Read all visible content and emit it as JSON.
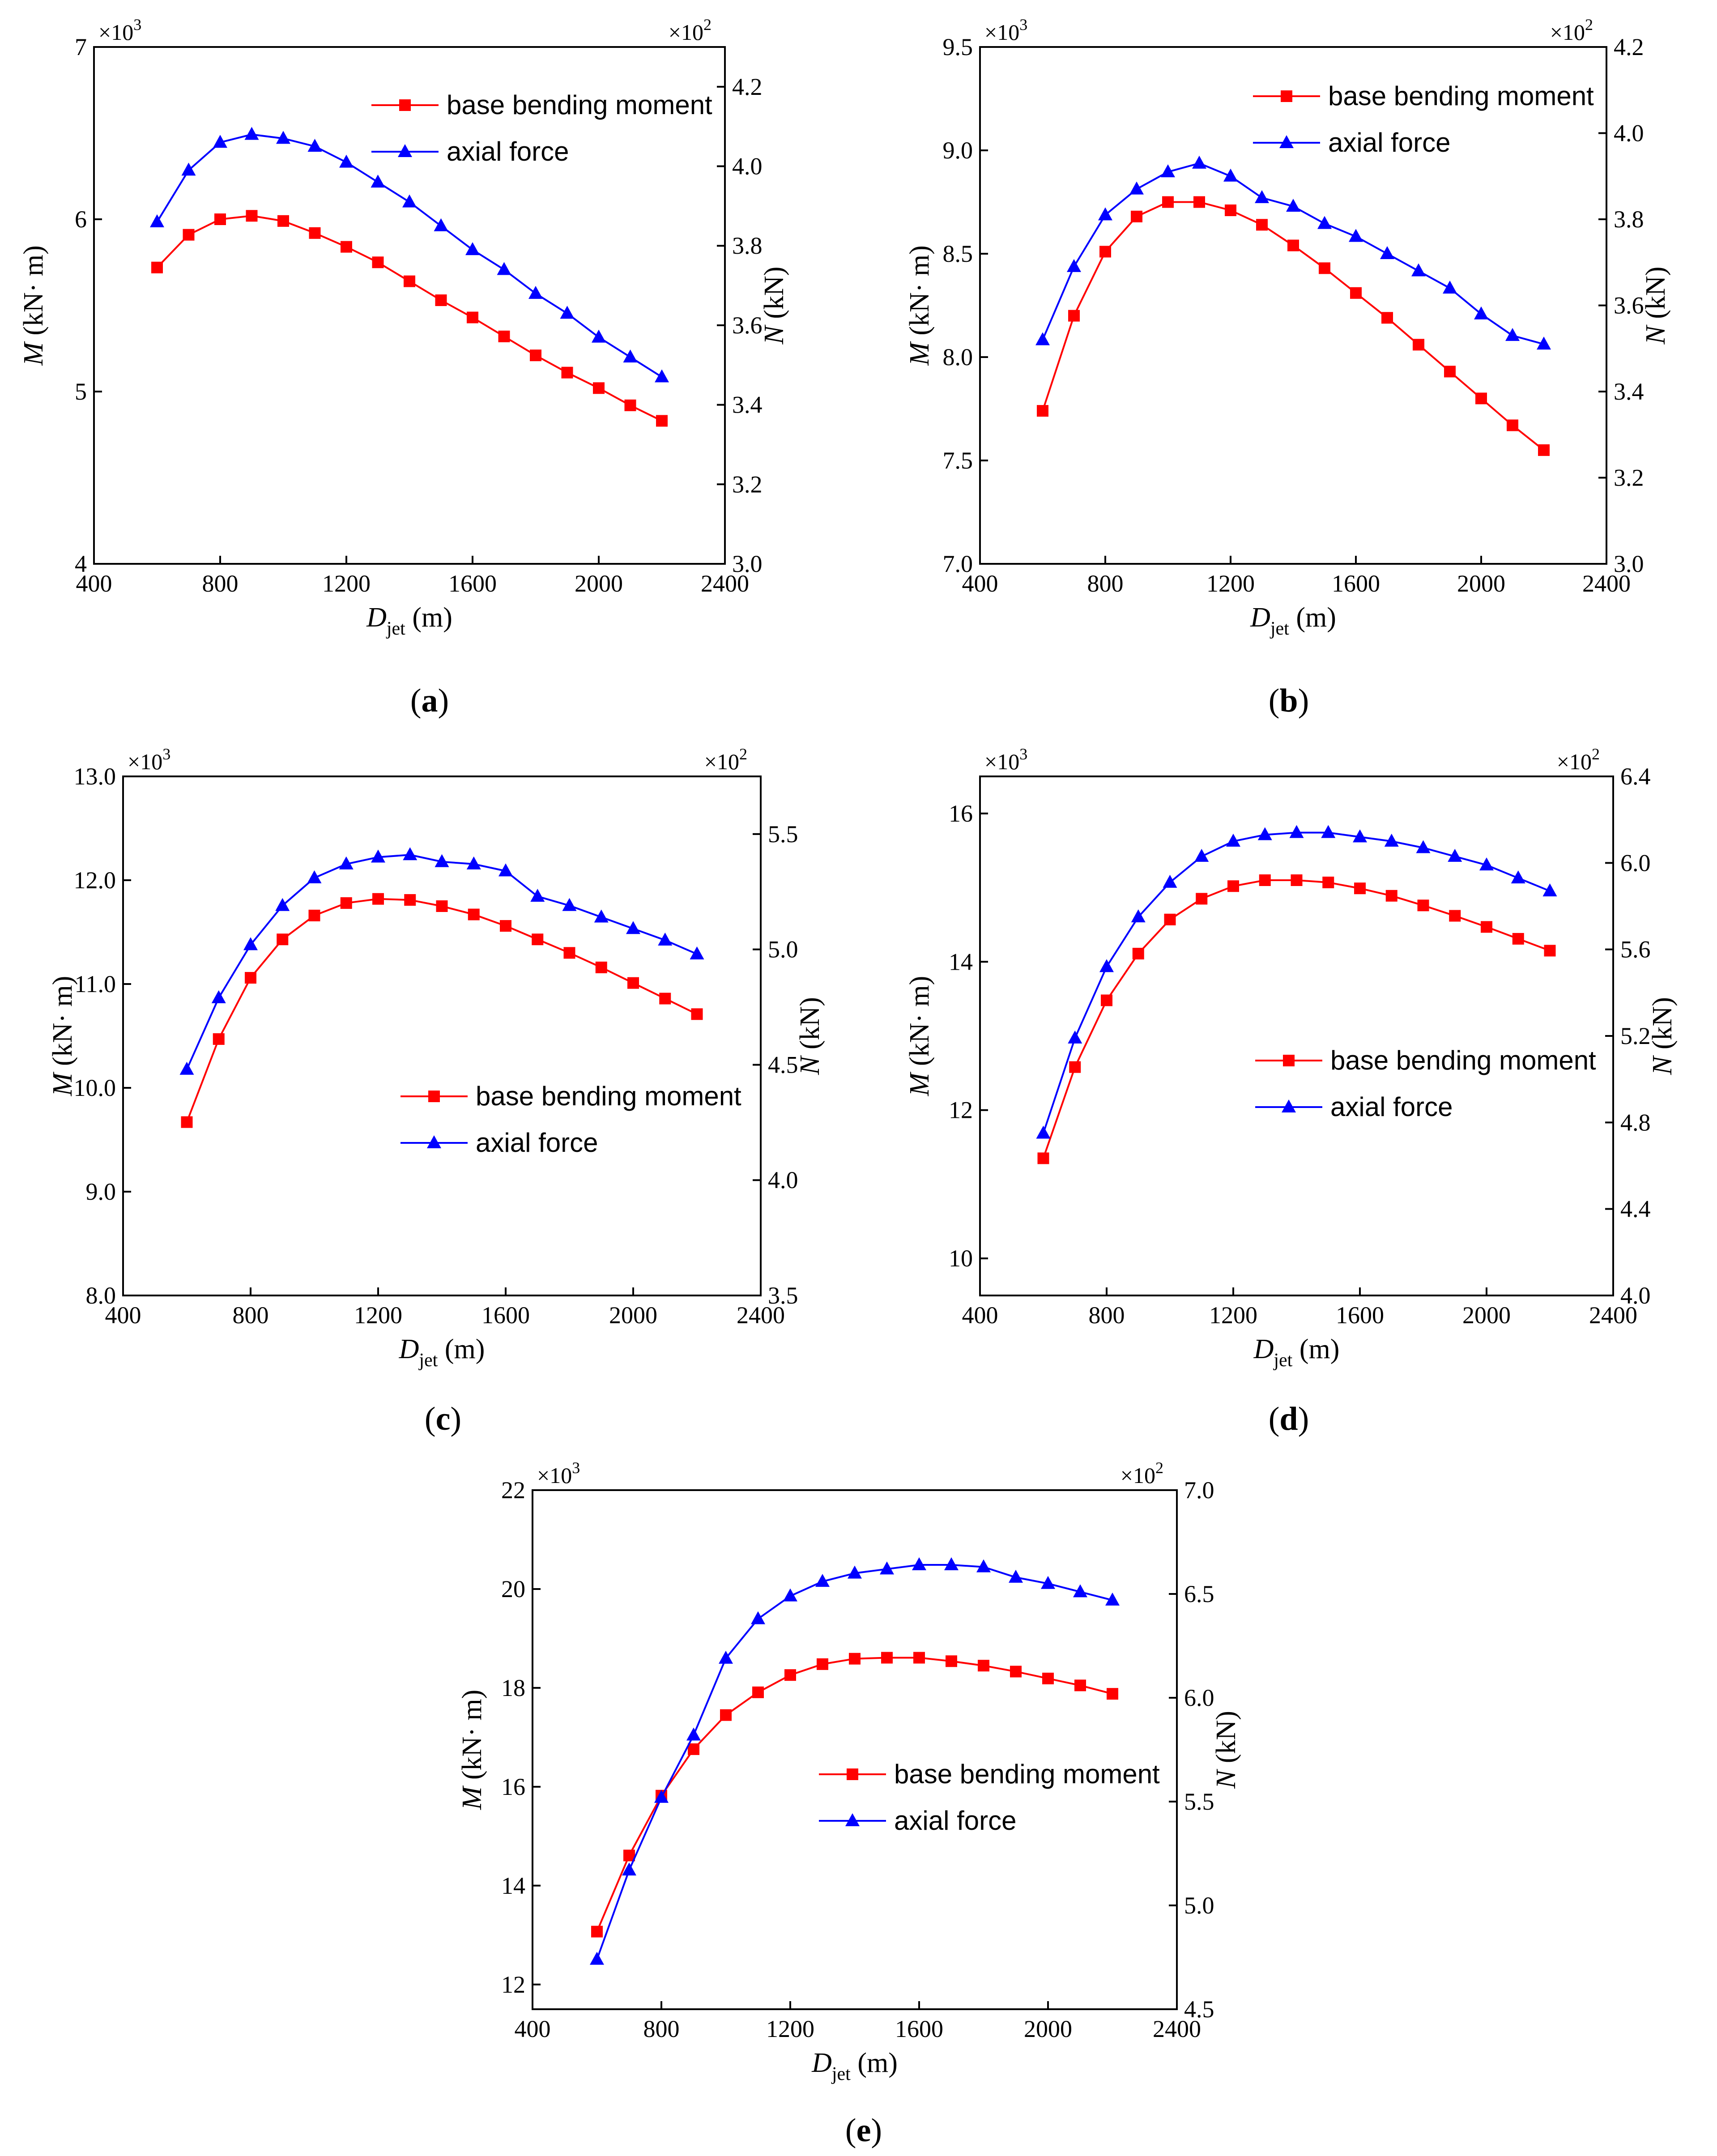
{
  "figure": {
    "colors": {
      "moment": "#ff0000",
      "axial": "#0000ff"
    },
    "common": {
      "xlabel_main": "D",
      "xlabel_sub": "jet",
      "xlabel_unit": " (m)",
      "ylabel_left_main": "M",
      "ylabel_left_unit": " (kN· m)",
      "ylabel_right_main": "N",
      "ylabel_right_unit": " (kN)",
      "left_multiplier": "×10",
      "left_multiplier_exp": "3",
      "right_multiplier": "×10",
      "right_multiplier_exp": "2",
      "legend_moment": "base bending moment",
      "legend_axial": "axial force"
    }
  },
  "chart_data": [
    {
      "type": "line",
      "label": "(a)",
      "x": [
        600,
        700,
        800,
        900,
        1000,
        1100,
        1200,
        1300,
        1400,
        1500,
        1600,
        1700,
        1800,
        1900,
        2000,
        2100,
        2200
      ],
      "xlim": [
        400,
        2400
      ],
      "xticks": [
        400,
        800,
        1200,
        1600,
        2000,
        2400
      ],
      "xtick_labels": [
        "400",
        "800",
        "1200",
        "1600",
        "2000",
        "2400"
      ],
      "ylim_left": [
        4,
        7
      ],
      "yticks_left": [
        4,
        5,
        6,
        7
      ],
      "ytick_labels_left": [
        "4",
        "5",
        "6",
        "7"
      ],
      "ylim_right": [
        3.0,
        4.3
      ],
      "yticks_right": [
        3.0,
        3.2,
        3.4,
        3.6,
        3.8,
        4.0,
        4.2
      ],
      "ytick_labels_right": [
        "3.0",
        "3.2",
        "3.4",
        "3.6",
        "3.8",
        "4.0",
        "4.2"
      ],
      "legend_position": "top-right",
      "series": [
        {
          "name": "base bending moment",
          "axis": "left",
          "marker": "square",
          "values": [
            5.72,
            5.91,
            6.0,
            6.02,
            5.99,
            5.92,
            5.84,
            5.75,
            5.64,
            5.53,
            5.43,
            5.32,
            5.21,
            5.11,
            5.02,
            4.92,
            4.83
          ]
        },
        {
          "name": "axial force",
          "axis": "right",
          "marker": "triangle",
          "values": [
            3.86,
            3.99,
            4.06,
            4.08,
            4.07,
            4.05,
            4.01,
            3.96,
            3.91,
            3.85,
            3.79,
            3.74,
            3.68,
            3.63,
            3.57,
            3.52,
            3.47
          ]
        }
      ]
    },
    {
      "type": "line",
      "label": "(b)",
      "x": [
        600,
        700,
        800,
        900,
        1000,
        1100,
        1200,
        1300,
        1400,
        1500,
        1600,
        1700,
        1800,
        1900,
        2000,
        2100,
        2200
      ],
      "xlim": [
        400,
        2400
      ],
      "xticks": [
        400,
        800,
        1200,
        1600,
        2000,
        2400
      ],
      "xtick_labels": [
        "400",
        "800",
        "1200",
        "1600",
        "2000",
        "2400"
      ],
      "ylim_left": [
        7.0,
        9.5
      ],
      "yticks_left": [
        7.0,
        7.5,
        8.0,
        8.5,
        9.0,
        9.5
      ],
      "ytick_labels_left": [
        "7.0",
        "7.5",
        "8.0",
        "8.5",
        "9.0",
        "9.5"
      ],
      "ylim_right": [
        3.0,
        4.2
      ],
      "yticks_right": [
        3.0,
        3.2,
        3.4,
        3.6,
        3.8,
        4.0,
        4.2
      ],
      "ytick_labels_right": [
        "3.0",
        "3.2",
        "3.4",
        "3.6",
        "3.8",
        "4.0",
        "4.2"
      ],
      "legend_position": "top-right",
      "series": [
        {
          "name": "base bending moment",
          "axis": "left",
          "marker": "square",
          "values": [
            7.74,
            8.2,
            8.51,
            8.68,
            8.75,
            8.75,
            8.71,
            8.64,
            8.54,
            8.43,
            8.31,
            8.19,
            8.06,
            7.93,
            7.8,
            7.67,
            7.55
          ]
        },
        {
          "name": "axial force",
          "axis": "right",
          "marker": "triangle",
          "values": [
            3.52,
            3.69,
            3.81,
            3.87,
            3.91,
            3.93,
            3.9,
            3.85,
            3.83,
            3.79,
            3.76,
            3.72,
            3.68,
            3.64,
            3.58,
            3.53,
            3.51
          ]
        }
      ]
    },
    {
      "type": "line",
      "label": "(c)",
      "x": [
        600,
        700,
        800,
        900,
        1000,
        1100,
        1200,
        1300,
        1400,
        1500,
        1600,
        1700,
        1800,
        1900,
        2000,
        2100,
        2200
      ],
      "xlim": [
        400,
        2400
      ],
      "xticks": [
        400,
        800,
        1200,
        1600,
        2000,
        2400
      ],
      "xtick_labels": [
        "400",
        "800",
        "1200",
        "1600",
        "2000",
        "2400"
      ],
      "ylim_left": [
        8.0,
        13.0
      ],
      "yticks_left": [
        8.0,
        9.0,
        10.0,
        11.0,
        12.0,
        13.0
      ],
      "ytick_labels_left": [
        "8.0",
        "9.0",
        "10.0",
        "11.0",
        "12.0",
        "13.0"
      ],
      "ylim_right": [
        3.5,
        5.75
      ],
      "yticks_right": [
        3.5,
        4.0,
        4.5,
        5.0,
        5.5
      ],
      "ytick_labels_right": [
        "3.5",
        "4.0",
        "4.5",
        "5.0",
        "5.5"
      ],
      "legend_position": "center-right",
      "series": [
        {
          "name": "base bending moment",
          "axis": "left",
          "marker": "square",
          "values": [
            9.67,
            10.47,
            11.06,
            11.43,
            11.66,
            11.78,
            11.82,
            11.81,
            11.75,
            11.67,
            11.56,
            11.43,
            11.3,
            11.16,
            11.01,
            10.86,
            10.71
          ]
        },
        {
          "name": "axial force",
          "axis": "right",
          "marker": "triangle",
          "values": [
            4.48,
            4.79,
            5.02,
            5.19,
            5.31,
            5.37,
            5.4,
            5.41,
            5.38,
            5.37,
            5.34,
            5.23,
            5.19,
            5.14,
            5.09,
            5.04,
            4.98
          ]
        }
      ]
    },
    {
      "type": "line",
      "label": "(d)",
      "x": [
        600,
        700,
        800,
        900,
        1000,
        1100,
        1200,
        1300,
        1400,
        1500,
        1600,
        1700,
        1800,
        1900,
        2000,
        2100,
        2200
      ],
      "xlim": [
        400,
        2400
      ],
      "xticks": [
        400,
        800,
        1200,
        1600,
        2000,
        2400
      ],
      "xtick_labels": [
        "400",
        "800",
        "1200",
        "1600",
        "2000",
        "2400"
      ],
      "ylim_left": [
        9.5,
        16.5
      ],
      "yticks_left": [
        10,
        12,
        14,
        16
      ],
      "ytick_labels_left": [
        "10",
        "12",
        "14",
        "16"
      ],
      "ylim_right": [
        4.0,
        6.4
      ],
      "yticks_right": [
        4.0,
        4.4,
        4.8,
        5.2,
        5.6,
        6.0,
        6.4
      ],
      "ytick_labels_right": [
        "4.0",
        "4.4",
        "4.8",
        "5.2",
        "5.6",
        "6.0",
        "6.4"
      ],
      "legend_position": "center-right",
      "series": [
        {
          "name": "base bending moment",
          "axis": "left",
          "marker": "square",
          "values": [
            11.35,
            12.58,
            13.48,
            14.11,
            14.57,
            14.85,
            15.02,
            15.1,
            15.1,
            15.07,
            14.99,
            14.89,
            14.76,
            14.62,
            14.47,
            14.31,
            14.15
          ]
        },
        {
          "name": "axial force",
          "axis": "right",
          "marker": "triangle",
          "values": [
            4.75,
            5.19,
            5.52,
            5.75,
            5.91,
            6.03,
            6.1,
            6.13,
            6.14,
            6.14,
            6.12,
            6.1,
            6.07,
            6.03,
            5.99,
            5.93,
            5.87
          ]
        }
      ]
    },
    {
      "type": "line",
      "label": "(e)",
      "x": [
        600,
        700,
        800,
        900,
        1000,
        1100,
        1200,
        1300,
        1400,
        1500,
        1600,
        1700,
        1800,
        1900,
        2000,
        2100,
        2200
      ],
      "xlim": [
        400,
        2400
      ],
      "xticks": [
        400,
        800,
        1200,
        1600,
        2000,
        2400
      ],
      "xtick_labels": [
        "400",
        "800",
        "1200",
        "1600",
        "2000",
        "2400"
      ],
      "ylim_left": [
        11.5,
        22
      ],
      "yticks_left": [
        12,
        14,
        16,
        18,
        20,
        22
      ],
      "ytick_labels_left": [
        "12",
        "14",
        "16",
        "18",
        "20",
        "22"
      ],
      "ylim_right": [
        4.5,
        7.0
      ],
      "yticks_right": [
        4.5,
        5.0,
        5.5,
        6.0,
        6.5,
        7.0
      ],
      "ytick_labels_right": [
        "4.5",
        "5.0",
        "5.5",
        "6.0",
        "6.5",
        "7.0"
      ],
      "legend_position": "center-right",
      "series": [
        {
          "name": "base bending moment",
          "axis": "left",
          "marker": "square",
          "values": [
            13.07,
            14.61,
            15.82,
            16.76,
            17.45,
            17.91,
            18.26,
            18.48,
            18.59,
            18.61,
            18.61,
            18.54,
            18.45,
            18.33,
            18.19,
            18.05,
            17.88
          ]
        },
        {
          "name": "axial force",
          "axis": "right",
          "marker": "triangle",
          "values": [
            4.74,
            5.17,
            5.52,
            5.82,
            6.19,
            6.38,
            6.49,
            6.56,
            6.6,
            6.62,
            6.64,
            6.64,
            6.63,
            6.58,
            6.55,
            6.51,
            6.47
          ]
        }
      ]
    }
  ]
}
